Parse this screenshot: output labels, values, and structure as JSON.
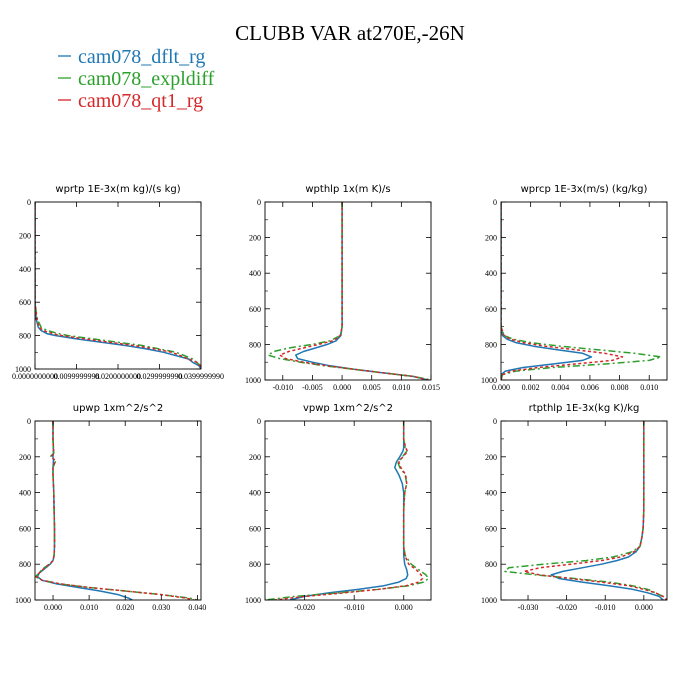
{
  "figure": {
    "title": "CLUBB VAR at270E,-26N",
    "legend": [
      {
        "label": "cam078_dflt_rg",
        "color": "#1f77b4",
        "dash": "solid"
      },
      {
        "label": "cam078_expldiff",
        "color": "#2ca02c",
        "dash": "dashdot"
      },
      {
        "label": "cam078_qt1_rg",
        "color": "#d62728",
        "dash": "dotted"
      }
    ]
  },
  "chart_data": [
    {
      "type": "line",
      "title": "wprtp  1E-3x(m kg)/(s kg)",
      "xlim": [
        0,
        0.04
      ],
      "ylim": [
        0,
        1000
      ],
      "xticks": [
        0,
        0.01,
        0.02,
        0.03,
        0.04
      ],
      "xticklabels": [
        "0.0000000000",
        "0.0099999998",
        "0.0200000000",
        "0.0299999990",
        "0.0399999990"
      ],
      "yticks": [
        0,
        200,
        400,
        600,
        800,
        1000
      ],
      "yticklabels": [
        "0",
        "200",
        "400",
        "600",
        "800",
        "1000"
      ],
      "y": [
        0,
        100,
        200,
        300,
        400,
        500,
        600,
        700,
        750,
        770,
        790,
        800,
        820,
        840,
        860,
        880,
        900,
        920,
        940,
        960,
        980,
        1000
      ],
      "series": [
        {
          "name": "cam078_dflt_rg",
          "x": [
            0,
            0,
            0,
            0,
            0,
            0,
            0,
            0.0003,
            0.0008,
            0.0015,
            0.003,
            0.005,
            0.01,
            0.016,
            0.022,
            0.027,
            0.031,
            0.034,
            0.037,
            0.038,
            0.0395,
            0.04
          ]
        },
        {
          "name": "cam078_expldiff",
          "x": [
            0,
            0,
            0,
            0,
            0,
            0,
            0,
            0.0005,
            0.0015,
            0.003,
            0.006,
            0.008,
            0.014,
            0.02,
            0.026,
            0.03,
            0.034,
            0.036,
            0.038,
            0.039,
            0.0398,
            0.04
          ]
        },
        {
          "name": "cam078_qt1_rg",
          "x": [
            0,
            0,
            0,
            0,
            0,
            0,
            0,
            0.0004,
            0.001,
            0.002,
            0.0045,
            0.0065,
            0.012,
            0.018,
            0.024,
            0.029,
            0.033,
            0.035,
            0.037,
            0.039,
            0.0398,
            0.04
          ]
        }
      ]
    },
    {
      "type": "line",
      "title": "wpthlp  1x(m K)/s",
      "xlim": [
        -0.013,
        0.015
      ],
      "ylim": [
        0,
        1000
      ],
      "xticks": [
        -0.01,
        -0.005,
        0,
        0.005,
        0.01,
        0.015
      ],
      "xticklabels": [
        "-0.010",
        "-0.005",
        "0.000",
        "0.005",
        "0.010",
        "0.015"
      ],
      "yticks": [
        0,
        200,
        400,
        600,
        800,
        1000
      ],
      "yticklabels": [
        "0",
        "200",
        "400",
        "600",
        "800",
        "1000"
      ],
      "y": [
        0,
        100,
        200,
        300,
        400,
        500,
        600,
        700,
        750,
        780,
        800,
        820,
        840,
        860,
        880,
        900,
        920,
        940,
        960,
        980,
        1000
      ],
      "series": [
        {
          "name": "cam078_dflt_rg",
          "x": [
            0,
            0,
            0,
            0,
            0,
            0,
            0,
            0,
            -0.0002,
            -0.001,
            -0.0025,
            -0.0045,
            -0.0065,
            -0.0078,
            -0.0075,
            -0.005,
            -0.002,
            0.002,
            0.007,
            0.012,
            0.0145
          ]
        },
        {
          "name": "cam078_expldiff",
          "x": [
            0,
            0,
            0,
            0,
            0,
            0,
            0,
            0,
            -0.0003,
            -0.002,
            -0.005,
            -0.009,
            -0.0115,
            -0.0125,
            -0.0105,
            -0.007,
            -0.003,
            0.002,
            0.007,
            0.012,
            0.015
          ]
        },
        {
          "name": "cam078_qt1_rg",
          "x": [
            0,
            0,
            0,
            0,
            0,
            0,
            0,
            0,
            -0.0003,
            -0.0015,
            -0.004,
            -0.0065,
            -0.009,
            -0.0105,
            -0.0095,
            -0.0065,
            -0.0025,
            0.002,
            0.007,
            0.012,
            0.0145
          ]
        }
      ]
    },
    {
      "type": "line",
      "title": "wprcp  1E-3x(m/s) (kg/kg)",
      "xlim": [
        0,
        0.0112
      ],
      "ylim": [
        0,
        1000
      ],
      "xticks": [
        0,
        0.002,
        0.004,
        0.006,
        0.008,
        0.01
      ],
      "xticklabels": [
        "0.000",
        "0.002",
        "0.004",
        "0.006",
        "0.008",
        "0.010"
      ],
      "yticks": [
        0,
        200,
        400,
        600,
        800,
        1000
      ],
      "yticklabels": [
        "0",
        "200",
        "400",
        "600",
        "800",
        "1000"
      ],
      "y": [
        0,
        200,
        400,
        600,
        700,
        750,
        770,
        790,
        810,
        830,
        850,
        870,
        890,
        910,
        930,
        950,
        970,
        1000
      ],
      "series": [
        {
          "name": "cam078_dflt_rg",
          "x": [
            0,
            0,
            0,
            0,
            0,
            0.0001,
            0.0004,
            0.001,
            0.0022,
            0.0038,
            0.0055,
            0.0061,
            0.0055,
            0.0035,
            0.0015,
            0.0003,
            0,
            0
          ]
        },
        {
          "name": "cam078_expldiff",
          "x": [
            0,
            0,
            0,
            0,
            0,
            0.0002,
            0.0008,
            0.002,
            0.004,
            0.0065,
            0.009,
            0.0108,
            0.01,
            0.007,
            0.0035,
            0.001,
            0.0001,
            0
          ]
        },
        {
          "name": "cam078_qt1_rg",
          "x": [
            0,
            0,
            0,
            0,
            0,
            0.0002,
            0.0006,
            0.0015,
            0.003,
            0.005,
            0.007,
            0.0082,
            0.0075,
            0.005,
            0.0025,
            0.0007,
            0.0001,
            0
          ]
        }
      ]
    },
    {
      "type": "line",
      "title": "upwp  1xm^2/s^2",
      "xlim": [
        -0.005,
        0.041
      ],
      "ylim": [
        0,
        1000
      ],
      "xticks": [
        0,
        0.01,
        0.02,
        0.03,
        0.04
      ],
      "xticklabels": [
        "0.000",
        "0.010",
        "0.020",
        "0.030",
        "0.040"
      ],
      "yticks": [
        0,
        200,
        400,
        600,
        800,
        1000
      ],
      "yticklabels": [
        "0",
        "200",
        "400",
        "600",
        "800",
        "1000"
      ],
      "y": [
        0,
        100,
        180,
        200,
        220,
        260,
        300,
        400,
        500,
        600,
        700,
        750,
        780,
        800,
        820,
        850,
        870,
        890,
        910,
        930,
        950,
        970,
        990,
        1000
      ],
      "series": [
        {
          "name": "cam078_dflt_rg",
          "x": [
            0,
            0,
            0.0001,
            0,
            0.0001,
            0,
            0,
            0.0002,
            0.0003,
            0.0004,
            0.0004,
            0.0003,
            0,
            -0.0008,
            -0.002,
            -0.0038,
            -0.0043,
            -0.003,
            0.001,
            0.007,
            0.013,
            0.018,
            0.021,
            0.022
          ]
        },
        {
          "name": "cam078_expldiff",
          "x": [
            0,
            0,
            0.0002,
            -0.0008,
            0.0008,
            0,
            0,
            0.0002,
            0.0003,
            0.0004,
            0.0004,
            0.0003,
            0,
            -0.001,
            -0.0025,
            -0.004,
            -0.0048,
            -0.003,
            0.002,
            0.01,
            0.02,
            0.03,
            0.038,
            0.04
          ]
        },
        {
          "name": "cam078_qt1_rg",
          "x": [
            0,
            0,
            0.0002,
            -0.0005,
            0.0006,
            0,
            0,
            0.0002,
            0.0003,
            0.0004,
            0.0004,
            0.0003,
            0,
            -0.001,
            -0.0023,
            -0.0039,
            -0.0046,
            -0.003,
            0.002,
            0.01,
            0.02,
            0.03,
            0.037,
            0.039
          ]
        }
      ]
    },
    {
      "type": "line",
      "title": "vpwp  1xm^2/s^2",
      "xlim": [
        -0.028,
        0.0055
      ],
      "ylim": [
        0,
        1000
      ],
      "xticks": [
        -0.02,
        -0.01,
        0
      ],
      "xticklabels": [
        "-0.020",
        "-0.010",
        "0.000"
      ],
      "yticks": [
        0,
        200,
        400,
        600,
        800,
        1000
      ],
      "yticklabels": [
        "0",
        "200",
        "400",
        "600",
        "800",
        "1000"
      ],
      "y": [
        0,
        100,
        150,
        170,
        200,
        230,
        260,
        300,
        350,
        400,
        500,
        600,
        700,
        750,
        800,
        830,
        860,
        880,
        900,
        920,
        940,
        960,
        980,
        1000
      ],
      "series": [
        {
          "name": "cam078_dflt_rg",
          "x": [
            0,
            0,
            0,
            -0.0002,
            -0.0008,
            -0.0015,
            -0.0018,
            -0.001,
            -0.0003,
            0,
            0,
            0,
            0,
            0,
            0.0002,
            0.0006,
            0.0008,
            0.0005,
            -0.001,
            -0.004,
            -0.009,
            -0.015,
            -0.02,
            -0.023
          ]
        },
        {
          "name": "cam078_expldiff",
          "x": [
            0,
            0,
            0.0003,
            0.0006,
            -0.0003,
            -0.0012,
            -0.0008,
            0.0003,
            0.0006,
            0.0002,
            0,
            0,
            0,
            0.0003,
            0.0015,
            0.003,
            0.0045,
            0.005,
            0.004,
            0.001,
            -0.005,
            -0.013,
            -0.022,
            -0.028
          ]
        },
        {
          "name": "cam078_qt1_rg",
          "x": [
            0,
            0,
            0.0004,
            0.0008,
            -0.0002,
            -0.001,
            -0.0006,
            0.0004,
            0.0006,
            0.0002,
            0,
            0,
            0,
            0.0002,
            0.001,
            0.0025,
            0.0035,
            0.0038,
            0.003,
            0.0005,
            -0.005,
            -0.012,
            -0.02,
            -0.026
          ]
        }
      ]
    },
    {
      "type": "line",
      "title": "rtpthlp  1E-3x(kg K)/kg",
      "xlim": [
        -0.037,
        0.006
      ],
      "ylim": [
        0,
        1000
      ],
      "xticks": [
        -0.03,
        -0.02,
        -0.01,
        0
      ],
      "xticklabels": [
        "-0.030",
        "-0.020",
        "-0.010",
        "0.000"
      ],
      "yticks": [
        0,
        200,
        400,
        600,
        800,
        1000
      ],
      "yticklabels": [
        "0",
        "200",
        "400",
        "600",
        "800",
        "1000"
      ],
      "y": [
        0,
        100,
        200,
        300,
        400,
        500,
        600,
        650,
        700,
        730,
        760,
        780,
        800,
        820,
        840,
        860,
        880,
        900,
        920,
        940,
        960,
        980,
        1000
      ],
      "series": [
        {
          "name": "cam078_dflt_rg",
          "x": [
            0,
            0,
            0,
            0,
            0,
            0,
            -0.0002,
            -0.0005,
            -0.001,
            -0.002,
            -0.004,
            -0.007,
            -0.011,
            -0.016,
            -0.021,
            -0.024,
            -0.022,
            -0.016,
            -0.009,
            -0.003,
            0.001,
            0.004,
            0.005
          ]
        },
        {
          "name": "cam078_expldiff",
          "x": [
            0,
            0,
            0,
            0,
            0,
            0,
            -0.0002,
            -0.0005,
            -0.001,
            -0.003,
            -0.008,
            -0.015,
            -0.026,
            -0.035,
            -0.036,
            -0.028,
            -0.018,
            -0.009,
            -0.003,
            0.001,
            0.003,
            0.005,
            0.006
          ]
        },
        {
          "name": "cam078_qt1_rg",
          "x": [
            0,
            0,
            0,
            0,
            0,
            0,
            -0.0002,
            -0.0005,
            -0.001,
            -0.0025,
            -0.006,
            -0.011,
            -0.019,
            -0.027,
            -0.031,
            -0.027,
            -0.019,
            -0.011,
            -0.004,
            0,
            0.003,
            0.005,
            0.006
          ]
        }
      ]
    }
  ]
}
